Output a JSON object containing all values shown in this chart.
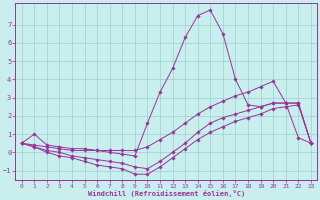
{
  "xlabel": "Windchill (Refroidissement éolien,°C)",
  "bg_color": "#c8eeed",
  "line_color": "#993399",
  "grid_color": "#9ecece",
  "xlim": [
    -0.5,
    23.5
  ],
  "ylim": [
    -1.5,
    8.2
  ],
  "xticks": [
    0,
    1,
    2,
    3,
    4,
    5,
    6,
    7,
    8,
    9,
    10,
    11,
    12,
    13,
    14,
    15,
    16,
    17,
    18,
    19,
    20,
    21,
    22,
    23
  ],
  "yticks": [
    -1,
    0,
    1,
    2,
    3,
    4,
    5,
    6,
    7
  ],
  "line1_x": [
    0,
    1,
    2,
    3,
    4,
    5,
    6,
    7,
    8,
    9,
    10,
    11,
    12,
    13,
    14,
    15,
    16,
    17,
    18,
    19,
    20,
    21,
    22,
    23
  ],
  "line1_y": [
    0.5,
    1.0,
    0.4,
    0.3,
    0.2,
    0.2,
    0.1,
    0.0,
    -0.1,
    -0.2,
    1.6,
    3.3,
    4.6,
    6.3,
    7.5,
    7.8,
    6.5,
    4.0,
    2.6,
    2.5,
    2.7,
    2.7,
    0.8,
    0.5
  ],
  "line2_x": [
    0,
    1,
    2,
    3,
    4,
    5,
    6,
    7,
    8,
    9,
    10,
    11,
    12,
    13,
    14,
    15,
    16,
    17,
    18,
    19,
    20,
    21,
    22,
    23
  ],
  "line2_y": [
    0.5,
    0.4,
    0.3,
    0.2,
    0.1,
    0.1,
    0.1,
    0.1,
    0.1,
    0.1,
    0.3,
    0.7,
    1.1,
    1.6,
    2.1,
    2.5,
    2.8,
    3.1,
    3.3,
    3.6,
    3.9,
    2.7,
    2.7,
    0.5
  ],
  "line3_x": [
    0,
    1,
    2,
    3,
    4,
    5,
    6,
    7,
    8,
    9,
    10,
    11,
    12,
    13,
    14,
    15,
    16,
    17,
    18,
    19,
    20,
    21,
    22,
    23
  ],
  "line3_y": [
    0.5,
    0.3,
    0.1,
    0.0,
    -0.2,
    -0.3,
    -0.4,
    -0.5,
    -0.6,
    -0.8,
    -0.9,
    -0.5,
    0.0,
    0.5,
    1.1,
    1.6,
    1.9,
    2.1,
    2.3,
    2.5,
    2.7,
    2.7,
    2.7,
    0.5
  ],
  "line4_x": [
    0,
    1,
    2,
    3,
    4,
    5,
    6,
    7,
    8,
    9,
    10,
    11,
    12,
    13,
    14,
    15,
    16,
    17,
    18,
    19,
    20,
    21,
    22,
    23
  ],
  "line4_y": [
    0.5,
    0.3,
    0.0,
    -0.2,
    -0.3,
    -0.5,
    -0.7,
    -0.8,
    -0.9,
    -1.2,
    -1.2,
    -0.8,
    -0.3,
    0.2,
    0.7,
    1.1,
    1.4,
    1.7,
    1.9,
    2.1,
    2.4,
    2.5,
    2.6,
    0.5
  ]
}
